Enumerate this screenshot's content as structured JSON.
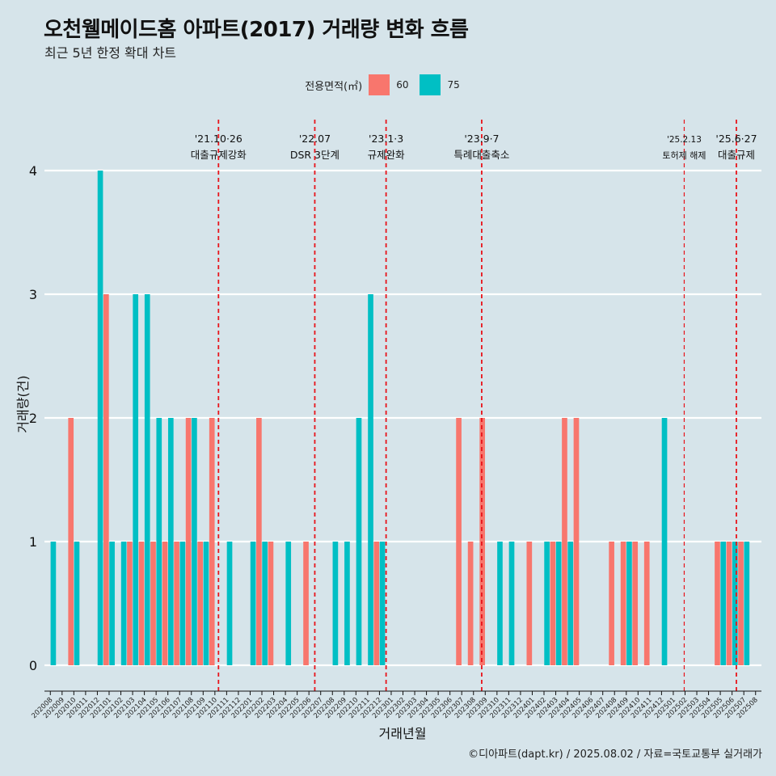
{
  "title": "오천웰메이드홈 아파트(2017) 거래량 변화 흐름",
  "subtitle": "최근 5년 한정 확대 차트",
  "caption": "©디아파트(dapt.kr) / 2025.08.02 / 자료=국토교통부 실거래가",
  "legend": {
    "title": "전용면적(㎡)",
    "items": [
      {
        "label": "60",
        "color": "#F8766D"
      },
      {
        "label": "75",
        "color": "#00BFC4"
      }
    ]
  },
  "chart_data": {
    "type": "bar",
    "xlabel": "거래년월",
    "ylabel": "거래량(건)",
    "ylim": [
      0,
      4
    ],
    "yticks": [
      0,
      1,
      2,
      3,
      4
    ],
    "grid": "horizontal",
    "legend_position": "top",
    "categories": [
      "202008",
      "202009",
      "202010",
      "202011",
      "202012",
      "202101",
      "202102",
      "202103",
      "202104",
      "202105",
      "202106",
      "202107",
      "202108",
      "202109",
      "202110",
      "202111",
      "202112",
      "202201",
      "202202",
      "202203",
      "202204",
      "202205",
      "202206",
      "202207",
      "202208",
      "202209",
      "202210",
      "202211",
      "202212",
      "202301",
      "202302",
      "202303",
      "202304",
      "202305",
      "202306",
      "202307",
      "202308",
      "202309",
      "202310",
      "202311",
      "202312",
      "202401",
      "202402",
      "202403",
      "202404",
      "202405",
      "202406",
      "202407",
      "202408",
      "202409",
      "202410",
      "202411",
      "202412",
      "202501",
      "202502",
      "202503",
      "202504",
      "202505",
      "202506",
      "202507",
      "202508"
    ],
    "series": [
      {
        "name": "60",
        "color": "#F8766D",
        "values": [
          0,
          0,
          2,
          0,
          0,
          3,
          0,
          1,
          1,
          1,
          1,
          1,
          2,
          1,
          2,
          0,
          0,
          0,
          2,
          1,
          0,
          0,
          1,
          0,
          0,
          0,
          0,
          0,
          1,
          0,
          0,
          0,
          0,
          0,
          0,
          2,
          1,
          2,
          0,
          0,
          0,
          1,
          0,
          1,
          2,
          2,
          0,
          0,
          1,
          1,
          1,
          1,
          0,
          0,
          0,
          0,
          0,
          1,
          1,
          1,
          0
        ]
      },
      {
        "name": "75",
        "color": "#00BFC4",
        "values": [
          1,
          0,
          1,
          0,
          4,
          1,
          1,
          3,
          3,
          2,
          2,
          1,
          2,
          1,
          0,
          1,
          0,
          1,
          1,
          0,
          1,
          0,
          0,
          0,
          1,
          1,
          2,
          3,
          1,
          0,
          0,
          0,
          0,
          0,
          0,
          0,
          0,
          0,
          1,
          1,
          0,
          0,
          1,
          1,
          1,
          0,
          0,
          0,
          0,
          1,
          0,
          0,
          2,
          0,
          0,
          0,
          0,
          1,
          1,
          1,
          0
        ]
      }
    ],
    "events": [
      {
        "date": "'21.10·26",
        "label": "대출규제강화",
        "at": "2021-10-26"
      },
      {
        "date": "'22.07",
        "label": "DSR 3단계",
        "at": "2022-07-01"
      },
      {
        "date": "'23.1·3",
        "label": "규제완화",
        "at": "2023-01-03"
      },
      {
        "date": "'23.9·7",
        "label": "특례대출축소",
        "at": "2023-09-07"
      },
      {
        "date": "'25.2.13",
        "label": "토허제 해제",
        "at": "2025-02-13"
      },
      {
        "date": "'25.6·27",
        "label": "대출규제",
        "at": "2025-06-27"
      }
    ]
  }
}
